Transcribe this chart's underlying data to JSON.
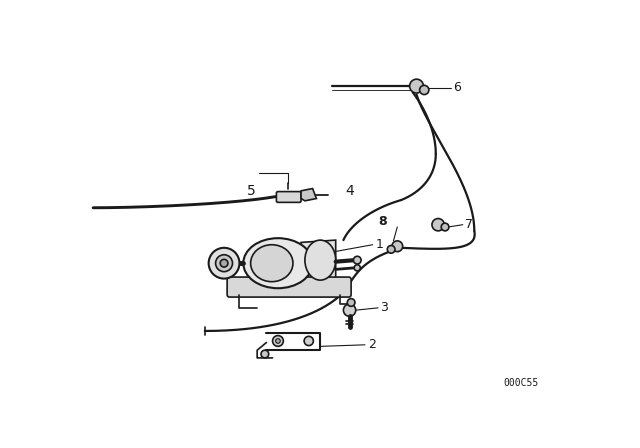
{
  "bg_color": "#ffffff",
  "line_color": "#1a1a1a",
  "text_color": "#1a1a1a",
  "catalog_number": "000C55",
  "figsize": [
    6.4,
    4.48
  ],
  "dpi": 100,
  "lw_tube": 1.6,
  "lw_part": 1.2,
  "lw_leader": 0.8
}
